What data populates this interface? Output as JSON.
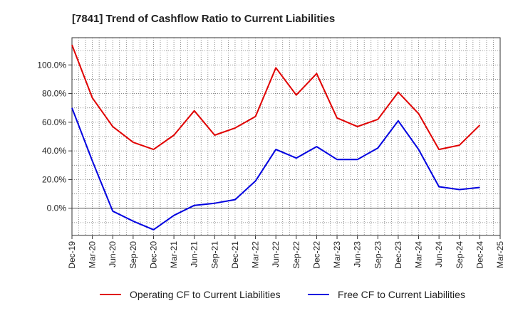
{
  "chart_data": {
    "type": "line",
    "title": "[7841]  Trend of Cashflow Ratio to Current Liabilities",
    "xlabel": "",
    "ylabel": "",
    "ylim": [
      -19,
      119
    ],
    "y_ticks": [
      0,
      20,
      40,
      60,
      80,
      100
    ],
    "y_tick_labels": [
      "0.0%",
      "20.0%",
      "40.0%",
      "60.0%",
      "80.0%",
      "100.0%"
    ],
    "x_tick_labels": [
      "Dec-19",
      "Mar-20",
      "Jun-20",
      "Sep-20",
      "Dec-20",
      "Mar-21",
      "Jun-21",
      "Sep-21",
      "Dec-21",
      "Mar-22",
      "Jun-22",
      "Sep-22",
      "Dec-22",
      "Mar-23",
      "Jun-23",
      "Sep-23",
      "Dec-23",
      "Mar-24",
      "Jun-24",
      "Sep-24",
      "Dec-24",
      "Mar-25"
    ],
    "grid": true,
    "legend_position": "bottom",
    "series": [
      {
        "name": "Operating CF to Current Liabilities",
        "color": "#e00000",
        "x": [
          "Dec-19",
          "Mar-20",
          "Jun-20",
          "Sep-20",
          "Dec-20",
          "Mar-21",
          "Jun-21",
          "Sep-21",
          "Dec-21",
          "Mar-22",
          "Jun-22",
          "Sep-22",
          "Dec-22",
          "Mar-23",
          "Jun-23",
          "Sep-23",
          "Dec-23",
          "Mar-24",
          "Jun-24",
          "Sep-24",
          "Dec-24"
        ],
        "values": [
          114,
          77,
          57,
          46,
          41,
          51,
          68,
          51,
          56,
          64,
          98,
          79,
          94,
          63,
          57,
          62,
          81,
          66,
          41,
          44,
          58
        ]
      },
      {
        "name": "Free CF to Current Liabilities",
        "color": "#0000e0",
        "x": [
          "Dec-19",
          "Mar-20",
          "Jun-20",
          "Sep-20",
          "Dec-20",
          "Mar-21",
          "Jun-21",
          "Sep-21",
          "Dec-21",
          "Mar-22",
          "Jun-22",
          "Sep-22",
          "Dec-22",
          "Mar-23",
          "Jun-23",
          "Sep-23",
          "Dec-23",
          "Mar-24",
          "Jun-24",
          "Sep-24",
          "Dec-24"
        ],
        "values": [
          70,
          33,
          -2,
          -9,
          -15,
          -5,
          2,
          3.5,
          6,
          19,
          41,
          35,
          43,
          34,
          34,
          42,
          61,
          41,
          15,
          13,
          14.5
        ]
      }
    ]
  }
}
